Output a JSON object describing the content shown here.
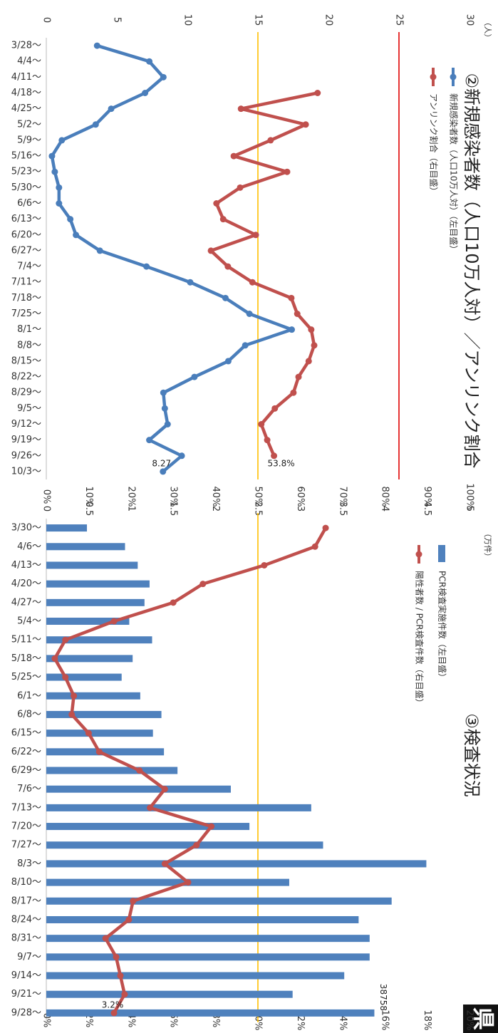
{
  "chart_data": [
    {
      "type": "line",
      "title": "②新規感染者数（人口10万人対）／アンリンク割合",
      "ylabel": "（人）",
      "categories": [
        "3/28〜",
        "4/4〜",
        "4/11〜",
        "4/18〜",
        "4/25〜",
        "5/2〜",
        "5/9〜",
        "5/16〜",
        "5/23〜",
        "5/30〜",
        "6/6〜",
        "6/13〜",
        "6/20〜",
        "6/27〜",
        "7/4〜",
        "7/11〜",
        "7/18〜",
        "7/25〜",
        "8/1〜",
        "8/8〜",
        "8/15〜",
        "8/22〜",
        "8/29〜",
        "9/5〜",
        "9/12〜",
        "9/19〜",
        "9/26〜",
        "10/3〜"
      ],
      "series": [
        {
          "name": "新規感染者数（人口10万人対）（左目盛）",
          "type": "line",
          "color": "#4a7ebb",
          "axis": "y",
          "values": [
            3.6,
            7.3,
            8.3,
            7.0,
            4.6,
            3.5,
            1.1,
            0.4,
            0.6,
            0.9,
            0.9,
            1.7,
            2.1,
            3.8,
            7.1,
            10.2,
            12.7,
            14.4,
            17.4,
            14.1,
            12.9,
            10.5,
            8.3,
            8.4,
            8.6,
            7.3,
            9.6,
            8.27
          ],
          "value_labels": [
            null,
            null,
            null,
            null,
            null,
            null,
            null,
            null,
            null,
            null,
            null,
            null,
            null,
            null,
            null,
            null,
            null,
            null,
            null,
            null,
            null,
            null,
            null,
            null,
            null,
            null,
            null,
            "8.27"
          ]
        },
        {
          "name": "アンリンク割合（右目盛）",
          "type": "line",
          "color": "#c0504d",
          "axis": "y2",
          "values": [
            null,
            null,
            null,
            64.1,
            46.0,
            61.3,
            53.0,
            44.3,
            56.9,
            45.8,
            40.2,
            41.8,
            49.5,
            38.9,
            42.9,
            48.7,
            57.9,
            59.3,
            62.6,
            63.3,
            62.0,
            59.6,
            58.4,
            54.0,
            50.8,
            52.2,
            53.8,
            null
          ],
          "value_labels": [
            null,
            null,
            null,
            null,
            null,
            null,
            null,
            null,
            null,
            null,
            null,
            null,
            null,
            null,
            null,
            null,
            null,
            null,
            null,
            null,
            null,
            null,
            null,
            null,
            null,
            null,
            "53.8%",
            null
          ]
        }
      ],
      "ylim": [
        0,
        30
      ],
      "yticks": [
        0,
        5,
        10,
        15,
        20,
        25,
        30
      ],
      "y2lim": [
        0,
        100
      ],
      "y2ticks": [
        {
          "value": 0,
          "label": "0%"
        },
        {
          "value": 10,
          "label": "10%"
        },
        {
          "value": 20,
          "label": "20%"
        },
        {
          "value": 30,
          "label": "30%"
        },
        {
          "value": 40,
          "label": "40%"
        },
        {
          "value": 50,
          "label": "50%"
        },
        {
          "value": 60,
          "label": "60%"
        },
        {
          "value": 70,
          "label": "70%"
        },
        {
          "value": 80,
          "label": "80%"
        },
        {
          "value": 90,
          "label": "90%"
        },
        {
          "value": 100,
          "label": "100%"
        }
      ],
      "hlines": [
        {
          "value": 25,
          "color": "#e00000"
        },
        {
          "value": 15,
          "color": "#ffc000"
        }
      ]
    },
    {
      "type": "bar",
      "title": "③検査状況",
      "ylabel": "（万件）",
      "categories": [
        "3/30〜",
        "4/6〜",
        "4/13〜",
        "4/20〜",
        "4/27〜",
        "5/4〜",
        "5/11〜",
        "5/18〜",
        "5/25〜",
        "6/1〜",
        "6/8〜",
        "6/15〜",
        "6/22〜",
        "6/29〜",
        "7/6〜",
        "7/13〜",
        "7/20〜",
        "7/27〜",
        "8/3〜",
        "8/10〜",
        "8/17〜",
        "8/24〜",
        "8/31〜",
        "9/7〜",
        "9/14〜",
        "9/21〜",
        "9/28〜"
      ],
      "series": [
        {
          "name": "PCR検査実施件数（左目盛）",
          "type": "bar",
          "color": "#4f81bd",
          "axis": "y",
          "values": [
            0.48,
            0.93,
            1.08,
            1.22,
            1.16,
            0.98,
            1.25,
            1.02,
            0.89,
            1.11,
            1.36,
            1.26,
            1.39,
            1.55,
            2.18,
            3.13,
            2.4,
            3.27,
            4.49,
            2.87,
            4.08,
            3.69,
            3.82,
            3.82,
            3.52,
            2.91,
            3.8758
          ],
          "value_labels": [
            null,
            null,
            null,
            null,
            null,
            null,
            null,
            null,
            null,
            null,
            null,
            null,
            null,
            null,
            null,
            null,
            null,
            null,
            null,
            null,
            null,
            null,
            null,
            null,
            null,
            null,
            "38758"
          ]
        },
        {
          "name": "陽性者数 / PCR検査件数（右目盛）",
          "type": "line",
          "color": "#c0504d",
          "axis": "y2",
          "values": [
            13.2,
            12.7,
            10.3,
            7.4,
            6.0,
            3.2,
            0.9,
            0.4,
            0.9,
            1.3,
            1.2,
            2.0,
            2.5,
            4.4,
            5.6,
            4.9,
            7.8,
            7.1,
            5.6,
            6.7,
            4.1,
            3.9,
            2.8,
            3.3,
            3.5,
            3.7,
            3.2
          ],
          "value_labels": [
            null,
            null,
            null,
            null,
            null,
            null,
            null,
            null,
            null,
            null,
            null,
            null,
            null,
            null,
            null,
            null,
            null,
            null,
            null,
            null,
            null,
            null,
            null,
            null,
            null,
            null,
            "3.2%"
          ]
        }
      ],
      "ylim": [
        0,
        5
      ],
      "yticks": [
        0,
        0.5,
        1,
        1.5,
        2,
        2.5,
        3,
        3.5,
        4,
        4.5,
        5
      ],
      "y2lim": [
        0,
        20
      ],
      "y2ticks": [
        {
          "value": 0,
          "label": "0%"
        },
        {
          "value": 2,
          "label": "2%"
        },
        {
          "value": 4,
          "label": "4%"
        },
        {
          "value": 6,
          "label": "6%"
        },
        {
          "value": 8,
          "label": "8%"
        },
        {
          "value": 10,
          "label": "10%"
        },
        {
          "value": 12,
          "label": "12%"
        },
        {
          "value": 14,
          "label": "14%"
        },
        {
          "value": 16,
          "label": "16%"
        },
        {
          "value": 18,
          "label": "18%"
        },
        {
          "value": 20,
          "label": "20%"
        }
      ],
      "hlines": [
        {
          "value": 2.5,
          "color": "#ffc000"
        }
      ]
    }
  ],
  "badge": "県"
}
